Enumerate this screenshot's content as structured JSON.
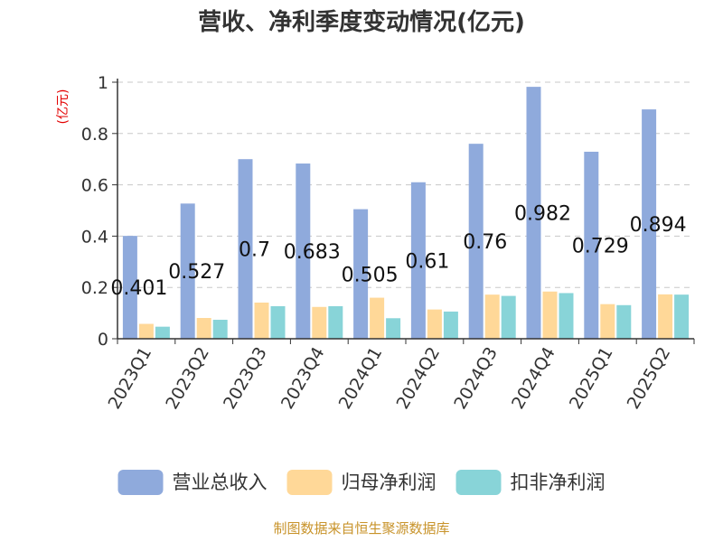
{
  "chart_data": {
    "type": "bar",
    "title": "营收、净利季度变动情况(亿元)",
    "ylabel": "(亿元)",
    "ylim": [
      0,
      1
    ],
    "yticks": [
      "0",
      "0.2",
      "0.4",
      "0.6",
      "0.8",
      "1"
    ],
    "categories": [
      "2023Q1",
      "2023Q2",
      "2023Q3",
      "2023Q4",
      "2024Q1",
      "2024Q2",
      "2024Q3",
      "2024Q4",
      "2025Q1",
      "2025Q2"
    ],
    "series": [
      {
        "name": "营业总收入",
        "color": "#8faadc",
        "values": [
          0.401,
          0.527,
          0.7,
          0.683,
          0.505,
          0.61,
          0.76,
          0.982,
          0.729,
          0.894
        ],
        "labels": [
          "0.401",
          "0.527",
          "0.7",
          "0.683",
          "0.505",
          "0.61",
          "0.76",
          "0.982",
          "0.729",
          "0.894"
        ]
      },
      {
        "name": "归母净利润",
        "color": "#ffd898",
        "values": [
          0.058,
          0.081,
          0.141,
          0.124,
          0.16,
          0.114,
          0.172,
          0.184,
          0.135,
          0.173
        ]
      },
      {
        "name": "扣非净利润",
        "color": "#88d4d8",
        "values": [
          0.047,
          0.074,
          0.127,
          0.127,
          0.08,
          0.106,
          0.167,
          0.178,
          0.131,
          0.172
        ]
      }
    ],
    "grid": true,
    "legend": "bottom",
    "source": "制图数据来自恒生聚源数据库"
  }
}
